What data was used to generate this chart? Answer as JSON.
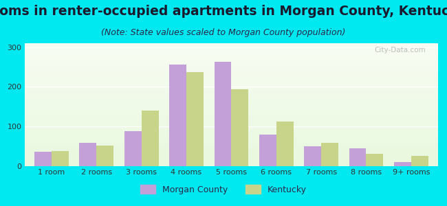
{
  "title": "Rooms in renter-occupied apartments in Morgan County, Kentucky",
  "subtitle": "(Note: State values scaled to Morgan County population)",
  "categories": [
    "1 room",
    "2 rooms",
    "3 rooms",
    "4 rooms",
    "5 rooms",
    "6 rooms",
    "7 rooms",
    "8 rooms",
    "9+ rooms"
  ],
  "morgan_county": [
    35,
    58,
    87,
    257,
    263,
    79,
    50,
    45,
    9
  ],
  "kentucky": [
    38,
    52,
    140,
    237,
    193,
    112,
    58,
    30,
    26
  ],
  "morgan_color": "#c4a0d8",
  "kentucky_color": "#c8d48a",
  "background_outer": "#00e8f0",
  "ylim": [
    0,
    310
  ],
  "yticks": [
    0,
    100,
    200,
    300
  ],
  "bar_width": 0.38,
  "title_fontsize": 13.5,
  "subtitle_fontsize": 9,
  "tick_fontsize": 8,
  "legend_fontsize": 9
}
